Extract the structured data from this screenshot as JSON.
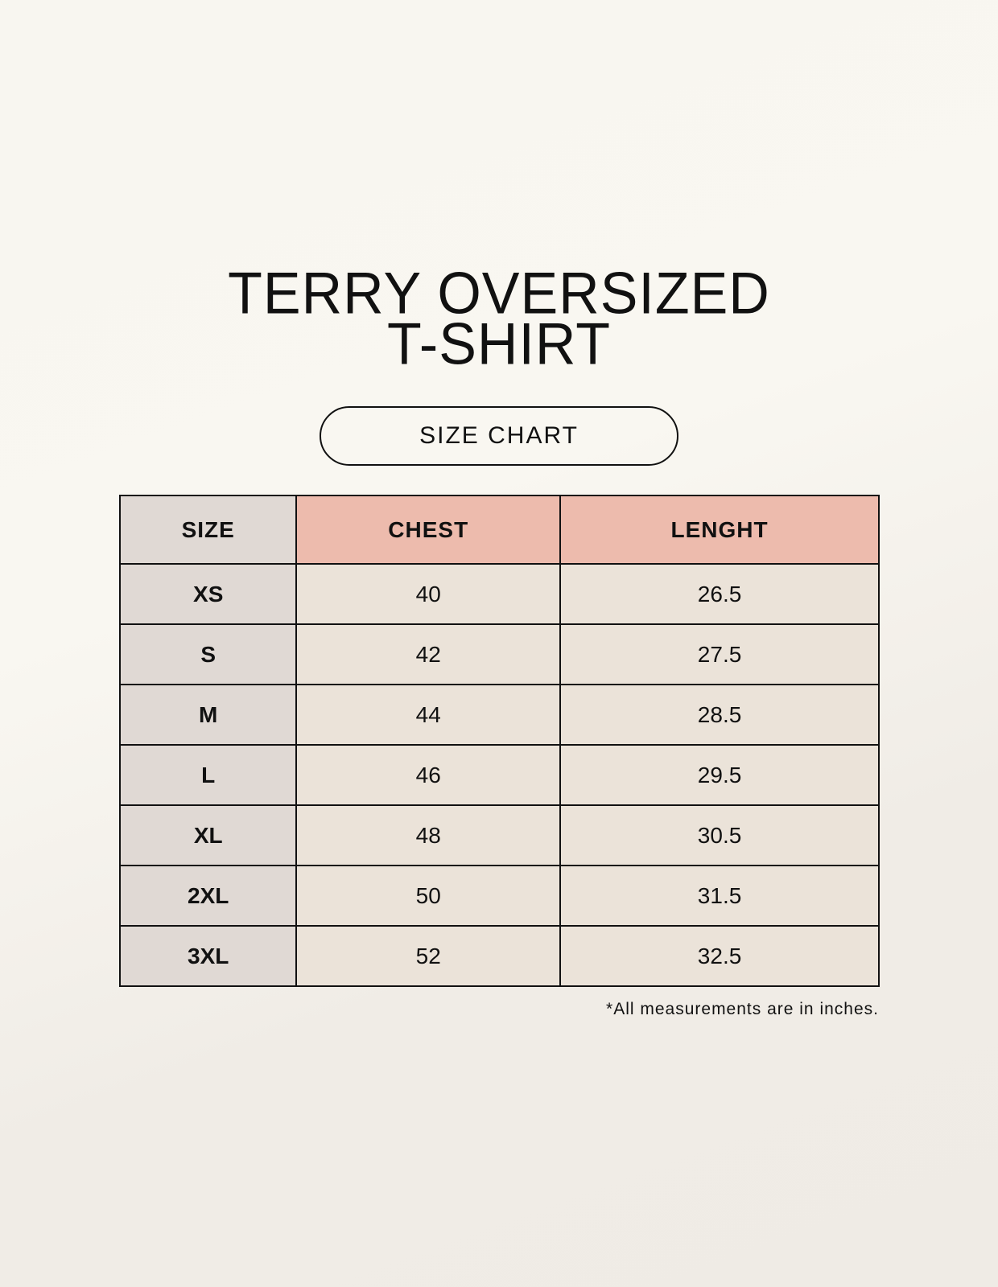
{
  "title": {
    "line1": "TERRY OVERSIZED",
    "line2": "T-SHIRT"
  },
  "badge": "SIZE CHART",
  "table": {
    "headers": [
      "SIZE",
      "CHEST",
      "LENGHT"
    ],
    "rows": [
      [
        "XS",
        "40",
        "26.5"
      ],
      [
        "S",
        "42",
        "27.5"
      ],
      [
        "M",
        "44",
        "28.5"
      ],
      [
        "L",
        "46",
        "29.5"
      ],
      [
        "XL",
        "48",
        "30.5"
      ],
      [
        "2XL",
        "50",
        "31.5"
      ],
      [
        "3XL",
        "52",
        "32.5"
      ]
    ]
  },
  "note": "*All measurements are in inches.",
  "colors": {
    "size_column": "#e0d9d4",
    "header_accent": "#edbbad",
    "value_cells": "#ebe3d9"
  }
}
